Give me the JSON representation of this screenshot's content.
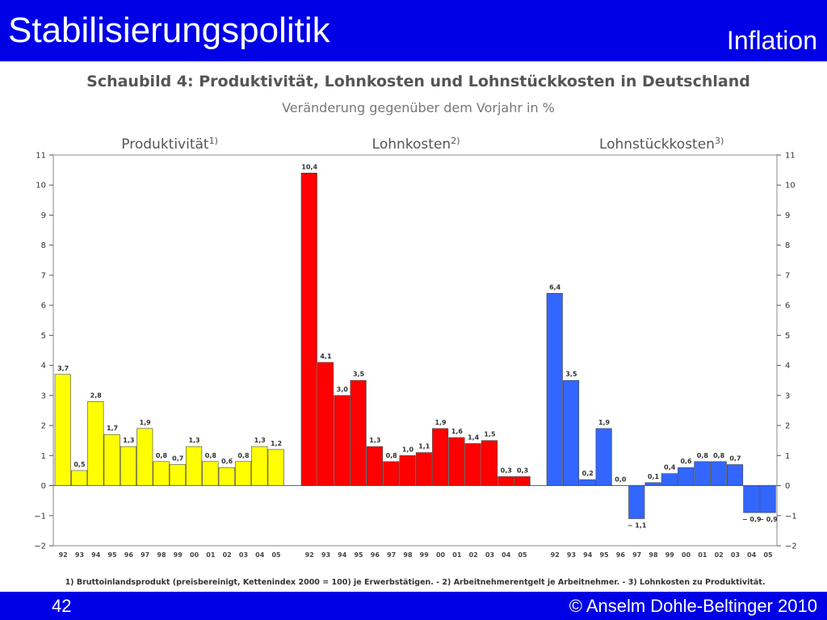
{
  "header": {
    "title": "Stabilisierungspolitik",
    "topic": "Inflation"
  },
  "footer": {
    "page_number": "42",
    "copyright": "© Anselm Dohle-Beltinger 2010"
  },
  "chart_data": {
    "type": "bar",
    "title": "Schaubild 4: Produktivität, Lohnkosten und Lohnstückkosten in Deutschland",
    "subtitle": "Veränderung gegenüber dem Vorjahr in %",
    "ylim": [
      -2,
      11
    ],
    "yticks": [
      "−2",
      "−1",
      "0",
      "1",
      "2",
      "3",
      "4",
      "5",
      "6",
      "7",
      "8",
      "9",
      "10",
      "11"
    ],
    "grid": false,
    "footnote": "1) Bruttoinlandsprodukt (preisbereinigt, Kettenindex 2000 = 100) je Erwerbstätigen. - 2) Arbeitnehmerentgelt je Arbeitnehmer. - 3) Lohnkosten zu Produktivität.",
    "series": [
      {
        "name": "Produktivität",
        "name_suffix": "1)",
        "color": "#ffff00",
        "categories": [
          "92",
          "93",
          "94",
          "95",
          "96",
          "97",
          "98",
          "99",
          "00",
          "01",
          "02",
          "03",
          "04",
          "05"
        ],
        "values": [
          3.7,
          0.5,
          2.8,
          1.7,
          1.3,
          1.9,
          0.8,
          0.7,
          1.3,
          0.8,
          0.6,
          0.8,
          1.3,
          1.2
        ],
        "labels": [
          "3,7",
          "0,5",
          "2,8",
          "1,7",
          "1,3",
          "1,9",
          "0,8",
          "0,7",
          "1,3",
          "0,8",
          "0,6",
          "0,8",
          "1,3",
          "1,2"
        ]
      },
      {
        "name": "Lohnkosten",
        "name_suffix": "2)",
        "color": "#ff0000",
        "categories": [
          "92",
          "93",
          "94",
          "95",
          "96",
          "97",
          "98",
          "99",
          "00",
          "01",
          "02",
          "03",
          "04",
          "05"
        ],
        "values": [
          10.4,
          4.1,
          3.0,
          3.5,
          1.3,
          0.8,
          1.0,
          1.1,
          1.9,
          1.6,
          1.4,
          1.5,
          0.3,
          0.3
        ],
        "labels": [
          "10,4",
          "4,1",
          "3,0",
          "3,5",
          "1,3",
          "0,8",
          "1,0",
          "1,1",
          "1,9",
          "1,6",
          "1,4",
          "1,5",
          "0,3",
          "0,3"
        ]
      },
      {
        "name": "Lohnstückkosten",
        "name_suffix": "3)",
        "color": "#3366ff",
        "categories": [
          "92",
          "93",
          "94",
          "95",
          "96",
          "97",
          "98",
          "99",
          "00",
          "01",
          "02",
          "03",
          "04",
          "05"
        ],
        "values": [
          6.4,
          3.5,
          0.2,
          1.9,
          0.0,
          -1.1,
          0.1,
          0.4,
          0.6,
          0.8,
          0.8,
          0.7,
          -0.9,
          -0.9
        ],
        "labels": [
          "6,4",
          "3,5",
          "0,2",
          "1,9",
          "0,0",
          "− 1,1",
          "0,1",
          "0,4",
          "0,6",
          "0,8",
          "0,8",
          "0,7",
          "− 0,9",
          "− 0,9"
        ]
      }
    ]
  }
}
